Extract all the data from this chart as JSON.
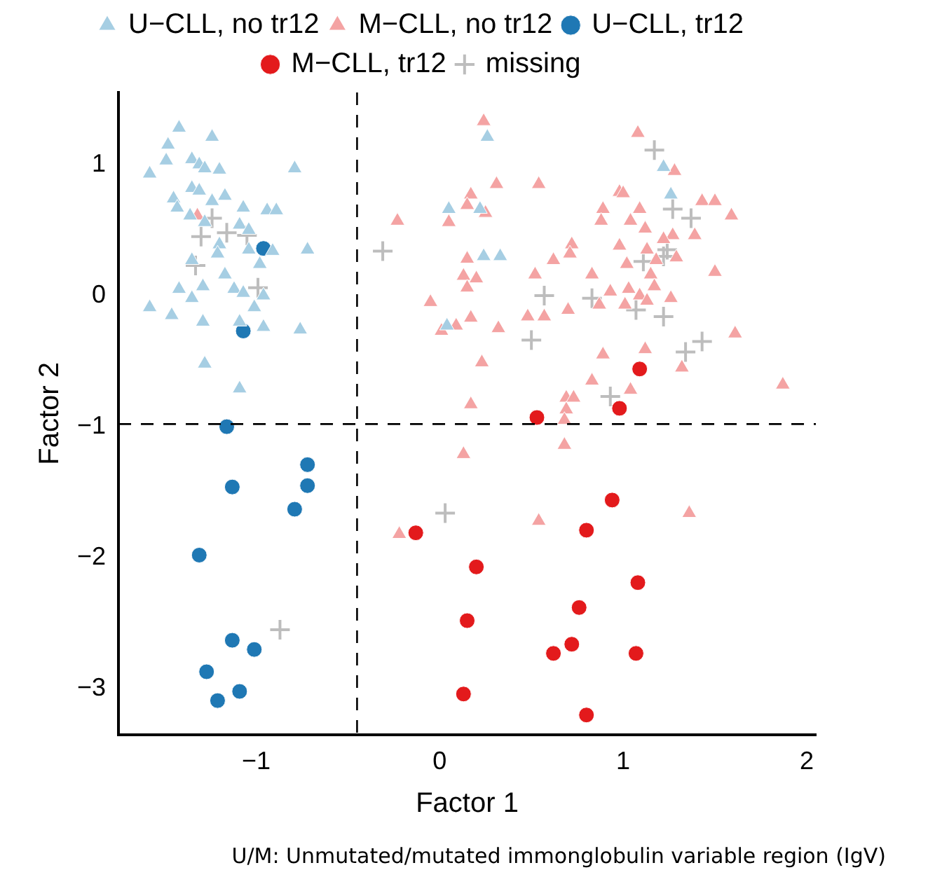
{
  "chart_data": {
    "type": "scatter",
    "xlabel": "Factor 1",
    "ylabel": "Factor 2",
    "xlim": [
      -1.75,
      2.05
    ],
    "ylim": [
      -3.35,
      1.55
    ],
    "xticks": [
      -1,
      0,
      1,
      2
    ],
    "yticks": [
      -3,
      -2,
      -1,
      0,
      1
    ],
    "grid": false,
    "legend": "top",
    "ref_lines": [
      {
        "axis": "x",
        "value": -0.45,
        "line_style": "dashed",
        "color": "#000000"
      },
      {
        "axis": "y",
        "value": -0.98,
        "line_style": "dashed",
        "color": "#000000"
      }
    ],
    "annotations": [
      "U/M: Unmutated/mutated immonglobulin variable region (IgV)"
    ],
    "series": [
      {
        "name": "U−CLL, no tr12",
        "color": "#a6cee3",
        "marker": "triangle",
        "x": [
          -1.42,
          -1.24,
          -1.48,
          -1.49,
          -1.58,
          -1.35,
          -1.31,
          -1.28,
          -1.2,
          -0.79,
          -1.35,
          -1.31,
          -1.45,
          -1.24,
          -1.17,
          -1.43,
          -1.07,
          -0.94,
          -0.89,
          -1.36,
          -1.28,
          -1.09,
          -1.04,
          -1.2,
          -1.04,
          -0.91,
          -0.72,
          -1.21,
          -1.35,
          -0.98,
          -1.17,
          -1.42,
          -1.29,
          -1.12,
          -1.35,
          -1.07,
          -0.96,
          -1.58,
          -1.46,
          -1.29,
          -1.01,
          -1.09,
          -0.96,
          -0.76,
          -1.28,
          -1.09,
          0.26,
          0.05,
          0.22,
          0.24,
          0.33,
          0.04,
          1.22,
          1.26
        ],
        "values": [
          1.28,
          1.21,
          1.15,
          1.03,
          0.93,
          1.04,
          1.0,
          0.97,
          0.96,
          0.97,
          0.82,
          0.8,
          0.74,
          0.72,
          0.76,
          0.67,
          0.67,
          0.65,
          0.65,
          0.61,
          0.56,
          0.54,
          0.5,
          0.39,
          0.35,
          0.34,
          0.35,
          0.32,
          0.27,
          0.24,
          0.16,
          0.05,
          0.07,
          0.05,
          -0.02,
          0.02,
          0.0,
          -0.09,
          -0.15,
          -0.2,
          -0.09,
          -0.2,
          -0.24,
          -0.26,
          -0.52,
          -0.71,
          1.21,
          0.66,
          0.66,
          0.3,
          0.3,
          -0.23,
          0.98,
          0.77
        ]
      },
      {
        "name": "M−CLL, no tr12",
        "color": "#f4a3a3",
        "marker": "triangle",
        "x": [
          -1.32,
          0.24,
          1.08,
          0.31,
          0.54,
          0.17,
          0.98,
          0.15,
          0.25,
          0.89,
          1.09,
          -0.23,
          0.05,
          0.88,
          1.04,
          0.72,
          0.71,
          0.98,
          0.62,
          0.15,
          1.02,
          0.52,
          0.83,
          0.13,
          0.2,
          0.15,
          1.03,
          0.93,
          0.87,
          1.01,
          0.7,
          -0.05,
          0.17,
          0.09,
          0.01,
          0.48,
          0.57,
          0.32,
          0.23,
          0.89,
          0.17,
          1.28,
          1.43,
          1.5,
          1.59,
          1.12,
          1.0,
          1.39,
          1.27,
          1.22,
          1.13,
          1.29,
          1.18,
          1.5,
          1.15,
          1.17,
          1.09,
          1.13,
          1.26,
          1.61,
          1.12,
          1.32,
          1.04,
          1.87,
          0.83,
          0.69,
          0.73,
          0.69,
          0.68,
          0.68,
          0.13,
          1.36,
          0.54,
          -0.22
        ],
        "values": [
          0.61,
          1.33,
          1.24,
          0.85,
          0.85,
          0.77,
          0.79,
          0.69,
          0.63,
          0.66,
          0.66,
          0.57,
          0.56,
          0.57,
          0.57,
          0.39,
          0.32,
          0.38,
          0.27,
          0.28,
          0.24,
          0.16,
          0.16,
          0.15,
          0.13,
          0.06,
          0.05,
          0.03,
          -0.07,
          -0.07,
          -0.11,
          -0.05,
          -0.17,
          -0.23,
          -0.27,
          -0.16,
          -0.16,
          -0.25,
          -0.51,
          -0.45,
          -0.83,
          0.95,
          0.72,
          0.72,
          0.61,
          0.51,
          0.78,
          0.46,
          0.46,
          0.43,
          0.35,
          0.29,
          0.27,
          0.18,
          0.16,
          0.07,
          0.0,
          -0.04,
          -0.02,
          -0.29,
          -0.41,
          -0.55,
          -0.72,
          -0.68,
          -0.65,
          -0.78,
          -0.78,
          -0.87,
          -0.95,
          -1.14,
          -1.21,
          -1.66,
          -1.72,
          -1.82
        ]
      },
      {
        "name": "U−CLL, tr12",
        "color": "#1f78b4",
        "marker": "circle",
        "x": [
          -0.96,
          -1.07,
          -1.16,
          -0.72,
          -0.72,
          -1.13,
          -0.79,
          -1.31,
          -1.13,
          -1.01,
          -1.27,
          -1.09,
          -1.21
        ],
        "values": [
          0.36,
          -0.27,
          -1.0,
          -1.29,
          -1.45,
          -1.46,
          -1.63,
          -1.98,
          -2.63,
          -2.7,
          -2.87,
          -3.02,
          -3.09
        ]
      },
      {
        "name": "M−CLL, tr12",
        "color": "#e31a1c",
        "marker": "circle",
        "x": [
          1.09,
          0.98,
          0.53,
          0.94,
          -0.13,
          0.8,
          0.2,
          1.08,
          0.76,
          0.15,
          0.72,
          0.62,
          1.07,
          0.13,
          0.8
        ],
        "values": [
          -0.56,
          -0.86,
          -0.93,
          -1.56,
          -1.81,
          -1.79,
          -2.07,
          -2.19,
          -2.38,
          -2.48,
          -2.66,
          -2.73,
          -2.73,
          -3.04,
          -3.2
        ]
      },
      {
        "name": "missing",
        "color": "#bdbdbd",
        "marker": "cross",
        "x": [
          -1.24,
          -1.16,
          -1.05,
          -1.3,
          -1.33,
          -0.99,
          -0.87,
          -0.31,
          0.57,
          0.83,
          1.07,
          0.5,
          0.93,
          1.11,
          1.17,
          1.27,
          1.37,
          1.24,
          1.22,
          1.22,
          1.34,
          1.43,
          0.03
        ],
        "values": [
          0.59,
          0.48,
          0.46,
          0.45,
          0.23,
          0.06,
          -2.55,
          0.34,
          0.0,
          -0.02,
          -0.11,
          -0.34,
          -0.77,
          0.26,
          1.11,
          0.66,
          0.59,
          0.35,
          0.3,
          -0.16,
          -0.43,
          -0.35,
          -1.66
        ]
      }
    ]
  }
}
